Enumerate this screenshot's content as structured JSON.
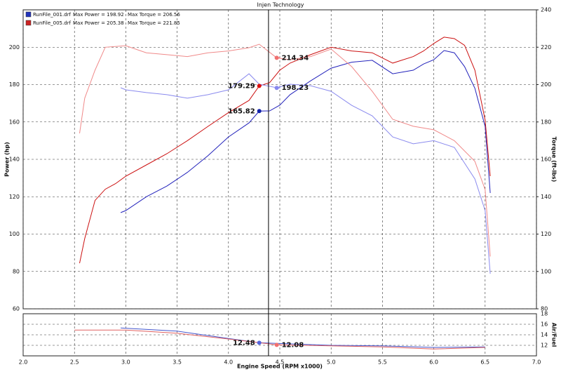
{
  "chart_data": {
    "type": "line",
    "title": "Injen Technology",
    "legend": [
      {
        "file": "RunFile_001.drf",
        "power": "Max Power = 198.92",
        "torque": "Max Torque = 206.56",
        "color": "#2233bb"
      },
      {
        "file": "RunFile_005.drf",
        "power": "Max Power = 205.38",
        "torque": "Max Torque = 221.85",
        "color": "#cc2222"
      }
    ],
    "xlabel": "Engine Speed (RPM x1000)",
    "ylabel": "Power (hp)",
    "y2label": "Torque (ft-lbs)",
    "xlim": [
      2.0,
      7.0
    ],
    "xticks": [
      {
        "value": 2.0,
        "label": "2.0"
      },
      2.5,
      {
        "value": 3.0,
        "label": "3.0"
      },
      3.5,
      {
        "value": 4.0,
        "label": "4.0"
      },
      4.5,
      {
        "value": 5.0,
        "label": "5.0"
      },
      5.5,
      {
        "value": 6.0,
        "label": "6.0"
      },
      6.5,
      {
        "value": 7.0,
        "label": "7.0"
      }
    ],
    "ylim": [
      60,
      220
    ],
    "yticks": [
      60,
      80,
      100,
      120,
      140,
      160,
      180,
      200
    ],
    "y2lim": [
      80,
      240
    ],
    "y2ticks": [
      80,
      100,
      120,
      140,
      160,
      180,
      200,
      220,
      240
    ],
    "grid": true,
    "cursor_x": 4.39,
    "series": [
      {
        "color": "#2222bb",
        "x": [
          2.95,
          3.0,
          3.2,
          3.4,
          3.6,
          3.8,
          4.0,
          4.2,
          4.3,
          4.4,
          4.5,
          4.6,
          4.8,
          5.0,
          5.2,
          5.4,
          5.6,
          5.8,
          5.9,
          6.0,
          6.1,
          6.2,
          6.3,
          6.4,
          6.5,
          6.55
        ],
        "values": [
          111.5,
          112.6,
          120,
          125.7,
          133,
          141.9,
          152,
          159.5,
          165.8,
          165.9,
          169,
          174.6,
          182,
          188.8,
          192,
          193,
          185.8,
          187.7,
          191,
          193.3,
          198.2,
          197,
          189.6,
          178,
          157.6,
          122
        ]
      },
      {
        "color": "#cc1111",
        "x": [
          2.55,
          2.6,
          2.7,
          2.8,
          2.9,
          3.0,
          3.2,
          3.4,
          3.6,
          3.8,
          4.0,
          4.2,
          4.3,
          4.4,
          4.5,
          4.6,
          4.8,
          5.0,
          5.2,
          5.4,
          5.6,
          5.8,
          5.9,
          6.0,
          6.1,
          6.2,
          6.3,
          6.4,
          6.5,
          6.55
        ],
        "values": [
          84.4,
          97.6,
          118,
          124,
          127,
          131,
          137,
          143,
          150,
          157.6,
          165,
          171.5,
          179.3,
          181,
          187.7,
          191.5,
          196,
          200,
          198,
          197,
          191.5,
          195,
          198,
          202,
          205.4,
          204.6,
          201,
          187.7,
          161,
          131
        ]
      },
      {
        "color": "#8a8aee",
        "axis": "y2",
        "x": [
          2.95,
          3.0,
          3.2,
          3.4,
          3.6,
          3.8,
          4.0,
          4.2,
          4.3,
          4.47,
          4.6,
          4.8,
          5.0,
          5.2,
          5.4,
          5.6,
          5.8,
          6.0,
          6.2,
          6.4,
          6.5,
          6.55
        ],
        "values": [
          198.3,
          197.2,
          195.7,
          194.6,
          192.7,
          194.6,
          197.2,
          205.8,
          200.2,
          198.3,
          200.2,
          199.4,
          196.4,
          188.9,
          183.3,
          172,
          168.3,
          170,
          166.4,
          149.5,
          132.6,
          98.8
        ]
      },
      {
        "color": "#f08a8a",
        "axis": "y2",
        "x": [
          2.55,
          2.6,
          2.7,
          2.8,
          3.0,
          3.2,
          3.4,
          3.6,
          3.8,
          4.0,
          4.2,
          4.3,
          4.47,
          4.6,
          4.8,
          5.0,
          5.2,
          5.4,
          5.6,
          5.8,
          6.0,
          6.2,
          6.4,
          6.5,
          6.55
        ],
        "values": [
          173.9,
          192.7,
          207.7,
          220,
          220.8,
          217,
          216,
          215,
          217,
          218,
          219.7,
          221.6,
          214.3,
          213.3,
          215,
          219,
          209.6,
          196.4,
          181.4,
          177.7,
          175.8,
          170,
          158.9,
          143.8,
          108
        ]
      }
    ],
    "markers": [
      {
        "x": 4.3,
        "value": 179.29,
        "color": "#dd1111"
      },
      {
        "x": 4.3,
        "value": 165.82,
        "color": "#1122aa"
      },
      {
        "x": 4.47,
        "value": 214.34,
        "color": "#f07070",
        "axis": "y2"
      },
      {
        "x": 4.47,
        "value": 198.23,
        "color": "#8888ee",
        "axis": "y2"
      }
    ],
    "afr": {
      "ylabel": "Air/Fuel",
      "ylim": [
        10,
        18
      ],
      "yticks": [
        12,
        14,
        16,
        18
      ],
      "series": [
        {
          "color": "#4455cc",
          "x": [
            2.95,
            3.5,
            4.0,
            4.3,
            5.0,
            5.5,
            6.0,
            6.5
          ],
          "values": [
            15.3,
            14.7,
            13.3,
            12.5,
            12,
            11.9,
            11.6,
            11.7
          ]
        },
        {
          "color": "#e06060",
          "x": [
            2.5,
            3.0,
            3.5,
            4.0,
            4.47,
            5.0,
            5.5,
            6.0,
            6.5
          ],
          "values": [
            14.9,
            14.9,
            14.3,
            13.2,
            12.1,
            11.9,
            11.7,
            11.3,
            11.6
          ]
        }
      ],
      "markers": [
        {
          "x": 4.3,
          "value": 12.48,
          "color": "#5566dd"
        },
        {
          "x": 4.47,
          "value": 12.08,
          "color": "#f07070"
        }
      ]
    }
  }
}
